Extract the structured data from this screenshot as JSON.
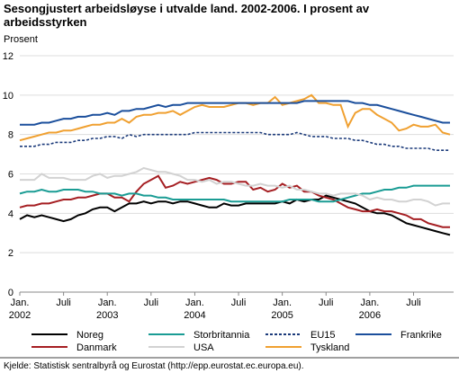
{
  "chart_data": {
    "type": "line",
    "title": "Sesongjustert arbeidsløyse i utvalde land. 2002-2006. I prosent av arbeidsstyrken",
    "y_label": "Prosent",
    "source": "Kjelde: Statistisk sentralbyrå og Eurostat (http://epp.eurostat.ec.europa.eu).",
    "categories": [
      "Jan.",
      null,
      null,
      null,
      null,
      null,
      "Juli",
      null,
      null,
      null,
      null,
      null,
      "Jan.",
      null,
      null,
      null,
      null,
      null,
      "Juli",
      null,
      null,
      null,
      null,
      null,
      "Jan.",
      null,
      null,
      null,
      null,
      null,
      "Juli",
      null,
      null,
      null,
      null,
      null,
      "Jan.",
      null,
      null,
      null,
      null,
      null,
      "Juli",
      null,
      null,
      null,
      null,
      null,
      "Jan.",
      null,
      null,
      null,
      null,
      null,
      "Juli",
      null,
      null,
      null,
      null,
      null
    ],
    "year_labels": [
      "2002",
      null,
      null,
      null,
      null,
      null,
      null,
      null,
      null,
      null,
      null,
      null,
      "2003",
      null,
      null,
      null,
      null,
      null,
      null,
      null,
      null,
      null,
      null,
      null,
      "2004",
      null,
      null,
      null,
      null,
      null,
      null,
      null,
      null,
      null,
      null,
      null,
      "2005",
      null,
      null,
      null,
      null,
      null,
      null,
      null,
      null,
      null,
      null,
      null,
      "2006",
      null,
      null,
      null,
      null,
      null,
      null,
      null,
      null,
      null,
      null,
      null
    ],
    "ylim": [
      0,
      12
    ],
    "yticks": [
      0,
      2,
      4,
      6,
      8,
      10,
      12
    ],
    "grid": true,
    "series": [
      {
        "name": "Noreg",
        "color": "#000000",
        "values": [
          3.7,
          3.9,
          3.8,
          3.9,
          3.8,
          3.7,
          3.6,
          3.7,
          3.9,
          4.0,
          4.2,
          4.3,
          4.3,
          4.1,
          4.3,
          4.5,
          4.5,
          4.6,
          4.5,
          4.6,
          4.6,
          4.5,
          4.6,
          4.6,
          4.5,
          4.4,
          4.3,
          4.3,
          4.5,
          4.4,
          4.4,
          4.5,
          4.5,
          4.5,
          4.5,
          4.5,
          4.6,
          4.5,
          4.7,
          4.6,
          4.7,
          4.7,
          4.9,
          4.8,
          4.7,
          4.6,
          4.5,
          4.3,
          4.1,
          4.0,
          4.0,
          3.9,
          3.7,
          3.5,
          3.4,
          3.3,
          3.2,
          3.1,
          3.0,
          2.9
        ]
      },
      {
        "name": "Danmark",
        "color": "#a51e22",
        "values": [
          4.3,
          4.4,
          4.4,
          4.5,
          4.5,
          4.6,
          4.7,
          4.7,
          4.8,
          4.8,
          4.9,
          5.0,
          5.0,
          4.8,
          4.8,
          4.6,
          5.1,
          5.5,
          5.7,
          5.9,
          5.3,
          5.4,
          5.6,
          5.5,
          5.6,
          5.7,
          5.8,
          5.7,
          5.5,
          5.5,
          5.6,
          5.6,
          5.2,
          5.3,
          5.1,
          5.2,
          5.5,
          5.3,
          5.4,
          5.1,
          5.1,
          4.9,
          4.8,
          4.7,
          4.5,
          4.3,
          4.2,
          4.1,
          4.1,
          4.2,
          4.1,
          4.1,
          4.0,
          3.9,
          3.7,
          3.7,
          3.5,
          3.4,
          3.3,
          3.3
        ]
      },
      {
        "name": "Storbritannia",
        "color": "#1a9c94",
        "values": [
          5.0,
          5.1,
          5.1,
          5.2,
          5.1,
          5.1,
          5.2,
          5.2,
          5.2,
          5.1,
          5.1,
          5.0,
          5.0,
          5.0,
          4.9,
          5.0,
          5.0,
          4.9,
          4.9,
          4.8,
          4.8,
          4.7,
          4.7,
          4.7,
          4.7,
          4.7,
          4.7,
          4.7,
          4.7,
          4.6,
          4.6,
          4.6,
          4.6,
          4.6,
          4.6,
          4.6,
          4.6,
          4.7,
          4.7,
          4.7,
          4.7,
          4.6,
          4.6,
          4.6,
          4.7,
          4.8,
          4.9,
          5.0,
          5.0,
          5.1,
          5.2,
          5.2,
          5.3,
          5.3,
          5.4,
          5.4,
          5.4,
          5.4,
          5.4,
          5.4
        ]
      },
      {
        "name": "USA",
        "color": "#d2d2d2",
        "values": [
          5.7,
          5.7,
          5.7,
          6.0,
          5.8,
          5.8,
          5.8,
          5.7,
          5.7,
          5.7,
          5.9,
          6.0,
          5.8,
          5.9,
          5.9,
          6.0,
          6.1,
          6.3,
          6.2,
          6.1,
          6.1,
          6.0,
          5.9,
          5.7,
          5.7,
          5.6,
          5.7,
          5.5,
          5.6,
          5.6,
          5.5,
          5.4,
          5.4,
          5.5,
          5.4,
          5.4,
          5.3,
          5.4,
          5.2,
          5.2,
          5.1,
          5.0,
          5.0,
          4.9,
          5.0,
          5.0,
          5.0,
          4.9,
          4.7,
          4.8,
          4.7,
          4.7,
          4.6,
          4.6,
          4.7,
          4.7,
          4.6,
          4.4,
          4.5,
          4.5
        ]
      },
      {
        "name": "EU15",
        "color": "#1b3a7a",
        "dashed": true,
        "values": [
          7.4,
          7.4,
          7.4,
          7.5,
          7.5,
          7.6,
          7.6,
          7.6,
          7.7,
          7.7,
          7.8,
          7.8,
          7.9,
          7.9,
          7.8,
          8.0,
          7.9,
          8.0,
          8.0,
          8.0,
          8.0,
          8.0,
          8.0,
          8.0,
          8.1,
          8.1,
          8.1,
          8.1,
          8.1,
          8.1,
          8.1,
          8.1,
          8.1,
          8.1,
          8.0,
          8.0,
          8.0,
          8.0,
          8.1,
          8.0,
          7.9,
          7.9,
          7.9,
          7.8,
          7.8,
          7.8,
          7.7,
          7.7,
          7.6,
          7.5,
          7.5,
          7.4,
          7.4,
          7.3,
          7.3,
          7.3,
          7.3,
          7.2,
          7.2,
          7.2
        ]
      },
      {
        "name": "Tyskland",
        "color": "#f0a030",
        "values": [
          7.7,
          7.8,
          7.9,
          8.0,
          8.1,
          8.1,
          8.2,
          8.2,
          8.3,
          8.4,
          8.5,
          8.5,
          8.6,
          8.6,
          8.8,
          8.6,
          8.9,
          9.0,
          9.0,
          9.1,
          9.1,
          9.2,
          9.0,
          9.2,
          9.4,
          9.5,
          9.4,
          9.4,
          9.4,
          9.5,
          9.6,
          9.6,
          9.5,
          9.6,
          9.6,
          9.9,
          9.5,
          9.6,
          9.7,
          9.8,
          10.0,
          9.6,
          9.6,
          9.5,
          9.5,
          8.4,
          9.1,
          9.3,
          9.3,
          9.0,
          8.8,
          8.6,
          8.2,
          8.3,
          8.5,
          8.4,
          8.4,
          8.5,
          8.1,
          8.0
        ]
      },
      {
        "name": "Frankrike",
        "color": "#1b4f9c",
        "values": [
          8.5,
          8.5,
          8.5,
          8.6,
          8.6,
          8.7,
          8.8,
          8.8,
          8.9,
          8.9,
          9.0,
          9.0,
          9.1,
          9.0,
          9.2,
          9.2,
          9.3,
          9.3,
          9.4,
          9.5,
          9.4,
          9.5,
          9.5,
          9.6,
          9.6,
          9.6,
          9.6,
          9.6,
          9.6,
          9.6,
          9.6,
          9.6,
          9.6,
          9.6,
          9.6,
          9.6,
          9.6,
          9.6,
          9.6,
          9.7,
          9.7,
          9.7,
          9.7,
          9.7,
          9.7,
          9.7,
          9.6,
          9.6,
          9.5,
          9.5,
          9.4,
          9.3,
          9.2,
          9.1,
          9.0,
          8.9,
          8.8,
          8.7,
          8.6,
          8.6
        ]
      }
    ]
  }
}
